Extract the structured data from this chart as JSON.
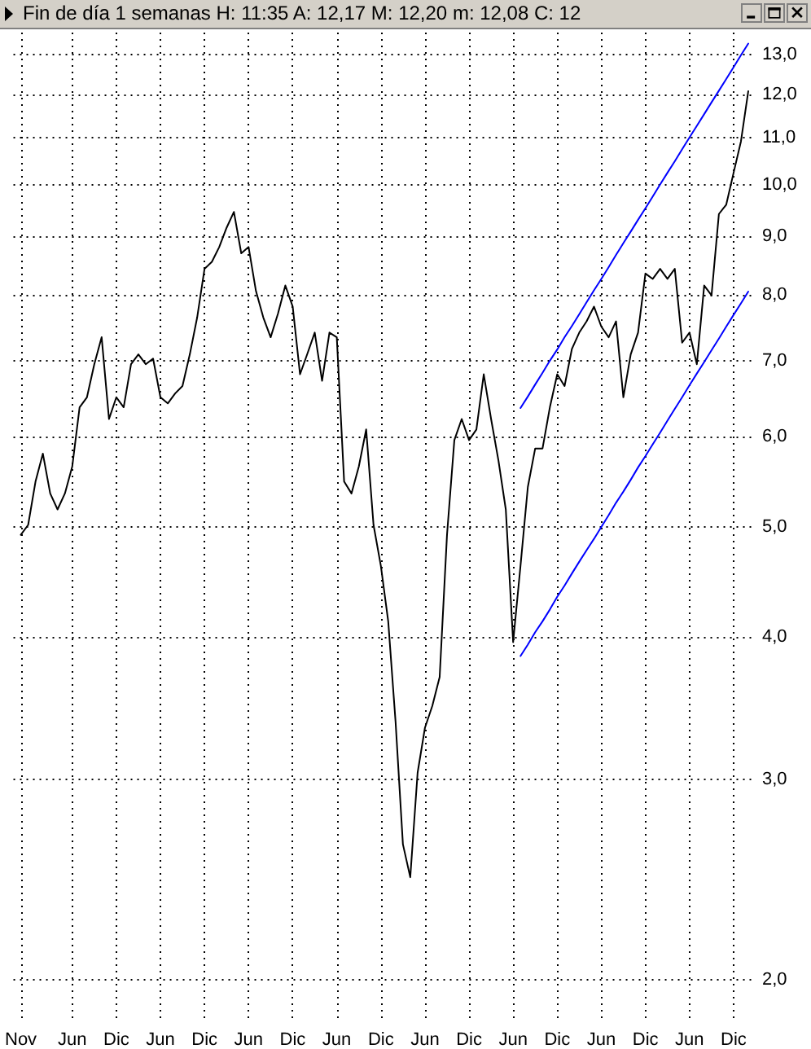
{
  "chart_data": {
    "type": "line",
    "title": "Fin de día 1 semanas  H: 11:35  A: 12,17  M: 12,20  m: 12,08  C: 12",
    "categories": [
      null,
      "Nov",
      null,
      null,
      null,
      null,
      null,
      null,
      "Jun",
      null,
      null,
      null,
      null,
      null,
      "Dic",
      null,
      null,
      null,
      null,
      null,
      "Jun",
      null,
      null,
      null,
      null,
      null,
      "Dic",
      null,
      null,
      null,
      null,
      null,
      "Jun",
      null,
      null,
      null,
      null,
      null,
      "Dic",
      null,
      null,
      null,
      null,
      null,
      "Jun",
      null,
      null,
      null,
      null,
      null,
      "Dic",
      null,
      null,
      null,
      null,
      null,
      "Jun",
      null,
      null,
      null,
      null,
      null,
      "Dic",
      null,
      null,
      null,
      null,
      null,
      "Jun",
      null,
      null,
      null,
      null,
      null,
      "Dic",
      null,
      null,
      null,
      null,
      null,
      "Jun",
      null,
      null,
      null,
      null,
      null,
      "Dic",
      null,
      null,
      null,
      null,
      null,
      "Jun",
      null,
      null,
      null,
      null,
      null,
      "Dic",
      null,
      null,
      null
    ],
    "series": [
      {
        "color": "#000000",
        "values": [
          null,
          4.92,
          5.02,
          5.48,
          5.8,
          5.35,
          5.18,
          5.35,
          5.65,
          6.37,
          6.5,
          6.95,
          7.34,
          6.22,
          6.5,
          6.37,
          6.95,
          7.09,
          6.95,
          7.03,
          6.5,
          6.42,
          6.55,
          6.65,
          7.09,
          7.64,
          8.43,
          8.55,
          8.81,
          9.16,
          9.46,
          8.7,
          8.81,
          8.06,
          7.64,
          7.34,
          7.7,
          8.15,
          7.81,
          6.81,
          7.1,
          7.41,
          6.72,
          7.41,
          7.34,
          5.48,
          5.35,
          5.65,
          6.09,
          5.02,
          4.62,
          4.13,
          3.37,
          2.63,
          2.46,
          3.04,
          3.33,
          3.48,
          3.69,
          4.92,
          5.96,
          6.22,
          5.96,
          6.09,
          6.81,
          6.22,
          5.72,
          5.18,
          3.96,
          4.62,
          5.42,
          5.86,
          5.86,
          6.37,
          6.81,
          6.65,
          7.17,
          7.41,
          7.58,
          7.81,
          7.5,
          7.34,
          7.58,
          6.5,
          7.09,
          7.41,
          8.35,
          8.26,
          8.43,
          8.26,
          8.43,
          7.26,
          7.41,
          6.95,
          8.15,
          7.99,
          9.42,
          9.6,
          10.24,
          10.91,
          12.08,
          null
        ]
      },
      {
        "color": "#0000ff",
        "values": [
          null,
          null,
          null,
          null,
          null,
          null,
          null,
          null,
          null,
          null,
          null,
          null,
          null,
          null,
          null,
          null,
          null,
          null,
          null,
          null,
          null,
          null,
          null,
          null,
          null,
          null,
          null,
          null,
          null,
          null,
          null,
          null,
          null,
          null,
          null,
          null,
          null,
          null,
          null,
          null,
          null,
          null,
          null,
          null,
          null,
          null,
          null,
          null,
          null,
          null,
          null,
          null,
          null,
          null,
          null,
          null,
          null,
          null,
          null,
          null,
          null,
          null,
          null,
          null,
          null,
          null,
          null,
          null,
          null,
          6.36,
          6.51,
          6.67,
          6.83,
          7.0,
          7.16,
          7.34,
          7.51,
          7.69,
          7.88,
          8.07,
          8.26,
          8.46,
          8.67,
          8.88,
          9.09,
          9.31,
          9.53,
          9.76,
          10.0,
          10.24,
          10.48,
          10.74,
          11.0,
          11.26,
          11.53,
          11.81,
          12.09,
          12.38,
          12.68,
          12.99,
          13.3,
          null
        ]
      },
      {
        "color": "#0000ff",
        "values": [
          null,
          null,
          null,
          null,
          null,
          null,
          null,
          null,
          null,
          null,
          null,
          null,
          null,
          null,
          null,
          null,
          null,
          null,
          null,
          null,
          null,
          null,
          null,
          null,
          null,
          null,
          null,
          null,
          null,
          null,
          null,
          null,
          null,
          null,
          null,
          null,
          null,
          null,
          null,
          null,
          null,
          null,
          null,
          null,
          null,
          null,
          null,
          null,
          null,
          null,
          null,
          null,
          null,
          null,
          null,
          null,
          null,
          null,
          null,
          null,
          null,
          null,
          null,
          null,
          null,
          null,
          null,
          null,
          null,
          3.85,
          3.94,
          4.04,
          4.13,
          4.23,
          4.34,
          4.44,
          4.55,
          4.66,
          4.77,
          4.88,
          5.0,
          5.12,
          5.25,
          5.37,
          5.5,
          5.64,
          5.77,
          5.91,
          6.05,
          6.2,
          6.35,
          6.5,
          6.66,
          6.82,
          6.98,
          7.15,
          7.32,
          7.5,
          7.68,
          7.86,
          8.05,
          null
        ]
      }
    ],
    "log": true,
    "ylim": [
      1.85,
      13.6
    ],
    "yticks": [
      {
        "value": 2,
        "label": "2,0"
      },
      {
        "value": 3,
        "label": "3,0"
      },
      {
        "value": 4,
        "label": "4,0"
      },
      {
        "value": 5,
        "label": "5,0"
      },
      {
        "value": 6,
        "label": "6,0"
      },
      {
        "value": 7,
        "label": "7,0"
      },
      {
        "value": 8,
        "label": "8,0"
      },
      {
        "value": 9,
        "label": "9,0"
      },
      {
        "value": 10,
        "label": "10,0"
      },
      {
        "value": 11,
        "label": "11,0"
      },
      {
        "value": 12,
        "label": "12,0"
      },
      {
        "value": 13,
        "label": "13,0"
      }
    ],
    "grid": true,
    "marker": "none",
    "line_style": "solid"
  }
}
